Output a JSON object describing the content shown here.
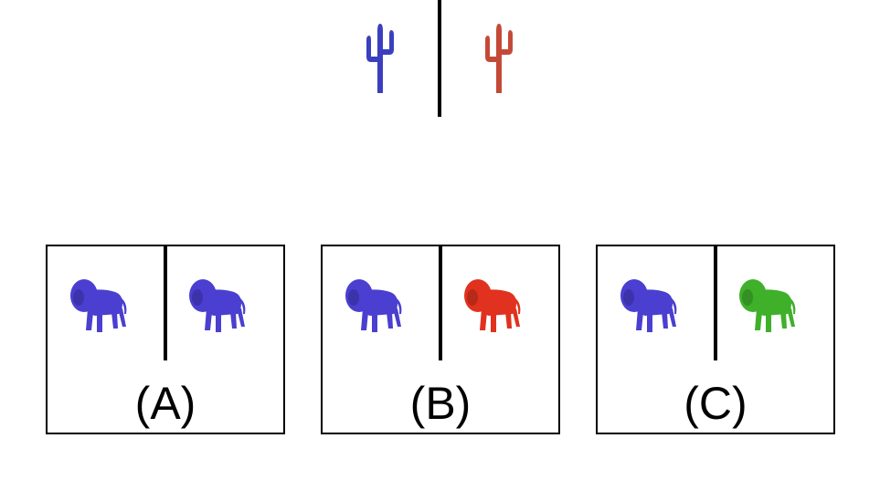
{
  "top": {
    "left_item": {
      "icon": "cactus-icon",
      "color": "#3b3fbf"
    },
    "right_item": {
      "icon": "cactus-icon",
      "color": "#c44a38"
    }
  },
  "options": [
    {
      "label": "(A)",
      "left": {
        "icon": "lion-icon",
        "color": "#4a3fd0"
      },
      "right": {
        "icon": "lion-icon",
        "color": "#4a3fd0"
      }
    },
    {
      "label": "(B)",
      "left": {
        "icon": "lion-icon",
        "color": "#4a3fd0"
      },
      "right": {
        "icon": "lion-icon",
        "color": "#e0321e"
      }
    },
    {
      "label": "(C)",
      "left": {
        "icon": "lion-icon",
        "color": "#4a3fd0"
      },
      "right": {
        "icon": "lion-icon",
        "color": "#3fb02a"
      }
    }
  ]
}
